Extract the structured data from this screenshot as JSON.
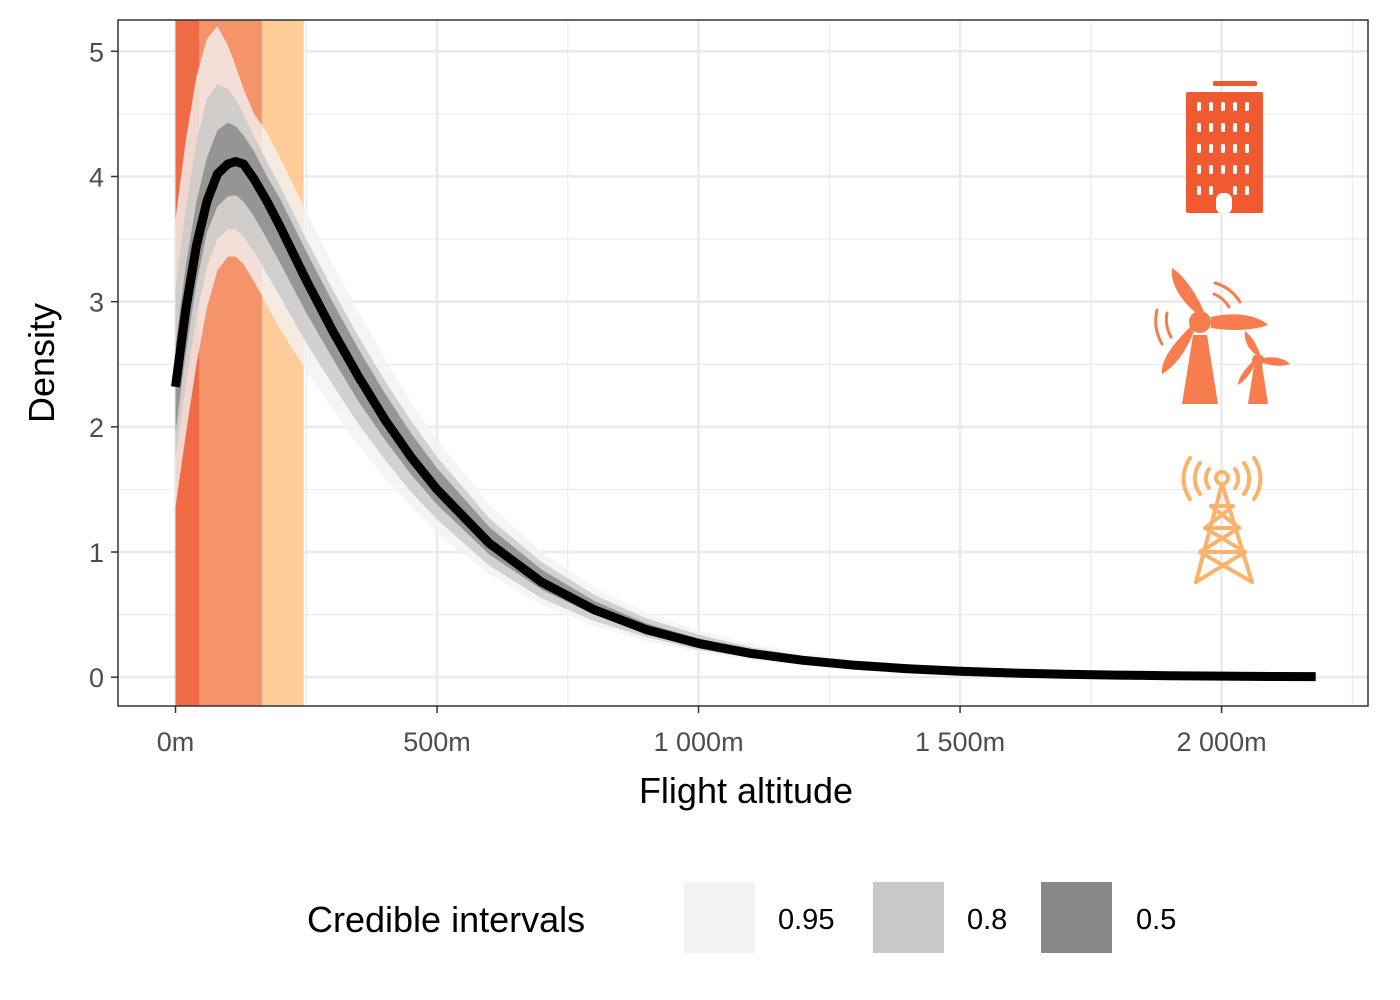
{
  "chart_data": {
    "type": "line",
    "xlabel": "Flight altitude",
    "ylabel": "Density",
    "xlim": [
      -110,
      2280
    ],
    "ylim": [
      -0.23,
      5.25
    ],
    "x_ticks": [
      0,
      500,
      1000,
      1500,
      2000
    ],
    "x_tick_labels": [
      "0m",
      "500m",
      "1 000m",
      "1 500m",
      "2 000m"
    ],
    "y_ticks": [
      0,
      1,
      2,
      3,
      4,
      5
    ],
    "y_tick_labels": [
      "0",
      "1",
      "2",
      "3",
      "4",
      "5"
    ],
    "grid": true,
    "height_bands": [
      {
        "name": "building",
        "from": 0,
        "to": 45,
        "color": "#f06a45"
      },
      {
        "name": "wind-turbine",
        "from": 0,
        "to": 165,
        "color": "#f5936a"
      },
      {
        "name": "radio-tower",
        "from": 0,
        "to": 245,
        "color": "#fdcc98"
      }
    ],
    "median": {
      "x": [
        0,
        20,
        40,
        60,
        80,
        100,
        115,
        130,
        150,
        175,
        200,
        250,
        300,
        350,
        400,
        450,
        500,
        600,
        700,
        800,
        900,
        1000,
        1100,
        1200,
        1300,
        1400,
        1500,
        1600,
        1700,
        1800,
        1900,
        2000,
        2100,
        2180
      ],
      "y": [
        2.32,
        2.95,
        3.45,
        3.8,
        4.02,
        4.1,
        4.12,
        4.1,
        3.98,
        3.8,
        3.6,
        3.17,
        2.77,
        2.4,
        2.06,
        1.76,
        1.5,
        1.07,
        0.76,
        0.54,
        0.38,
        0.27,
        0.19,
        0.135,
        0.095,
        0.068,
        0.048,
        0.034,
        0.024,
        0.017,
        0.012,
        0.009,
        0.006,
        0.005
      ]
    },
    "credible_intervals": [
      {
        "level": "0.95",
        "color": "#f2f2f2",
        "lower": [
          1.36,
          1.95,
          2.5,
          2.95,
          3.25,
          3.36,
          3.36,
          3.3,
          3.16,
          2.97,
          2.78,
          2.45,
          2.14,
          1.85,
          1.59,
          1.36,
          1.15,
          0.82,
          0.58,
          0.41,
          0.29,
          0.2,
          0.14,
          0.1,
          0.07,
          0.05,
          0.035,
          0.025,
          0.017,
          0.012,
          0.008,
          0.006,
          0.004,
          0.003
        ],
        "upper": [
          3.66,
          4.3,
          4.8,
          5.1,
          5.2,
          5.05,
          4.88,
          4.7,
          4.5,
          4.35,
          4.15,
          3.72,
          3.3,
          2.92,
          2.55,
          2.2,
          1.9,
          1.38,
          1.0,
          0.72,
          0.52,
          0.37,
          0.27,
          0.19,
          0.135,
          0.097,
          0.07,
          0.05,
          0.036,
          0.026,
          0.019,
          0.014,
          0.01,
          0.008
        ]
      },
      {
        "level": "0.8",
        "color": "#c8c8c8",
        "lower": [
          1.75,
          2.35,
          2.88,
          3.28,
          3.5,
          3.58,
          3.58,
          3.52,
          3.4,
          3.22,
          3.04,
          2.67,
          2.34,
          2.02,
          1.74,
          1.48,
          1.26,
          0.89,
          0.63,
          0.45,
          0.32,
          0.22,
          0.155,
          0.11,
          0.077,
          0.055,
          0.039,
          0.027,
          0.019,
          0.013,
          0.009,
          0.007,
          0.005,
          0.004
        ],
        "upper": [
          3.1,
          3.75,
          4.28,
          4.62,
          4.74,
          4.7,
          4.62,
          4.5,
          4.32,
          4.12,
          3.92,
          3.5,
          3.1,
          2.72,
          2.37,
          2.05,
          1.76,
          1.27,
          0.92,
          0.66,
          0.47,
          0.34,
          0.24,
          0.17,
          0.12,
          0.086,
          0.062,
          0.044,
          0.032,
          0.023,
          0.017,
          0.012,
          0.009,
          0.007
        ]
      },
      {
        "level": "0.5",
        "color": "#878787",
        "lower": [
          1.95,
          2.6,
          3.15,
          3.55,
          3.76,
          3.84,
          3.85,
          3.8,
          3.68,
          3.5,
          3.31,
          2.91,
          2.55,
          2.2,
          1.9,
          1.62,
          1.38,
          0.98,
          0.7,
          0.5,
          0.35,
          0.25,
          0.175,
          0.124,
          0.087,
          0.062,
          0.044,
          0.031,
          0.022,
          0.015,
          0.011,
          0.008,
          0.005,
          0.004
        ],
        "upper": [
          2.65,
          3.3,
          3.8,
          4.15,
          4.37,
          4.43,
          4.4,
          4.33,
          4.2,
          4.0,
          3.82,
          3.4,
          3.0,
          2.62,
          2.27,
          1.95,
          1.67,
          1.2,
          0.86,
          0.61,
          0.43,
          0.31,
          0.22,
          0.155,
          0.11,
          0.078,
          0.056,
          0.04,
          0.028,
          0.02,
          0.014,
          0.01,
          0.007,
          0.006
        ]
      }
    ],
    "legend": {
      "title": "Credible intervals",
      "placement": "bottom",
      "entries": [
        {
          "label": "0.95",
          "color": "#f2f2f2"
        },
        {
          "label": "0.8",
          "color": "#c8c8c8"
        },
        {
          "label": "0.5",
          "color": "#878787"
        }
      ]
    },
    "icons": [
      {
        "name": "building-icon",
        "color": "#f05a30"
      },
      {
        "name": "wind-turbine-icon",
        "color": "#f77c4e"
      },
      {
        "name": "radio-tower-icon",
        "color": "#fbb26a"
      }
    ]
  }
}
